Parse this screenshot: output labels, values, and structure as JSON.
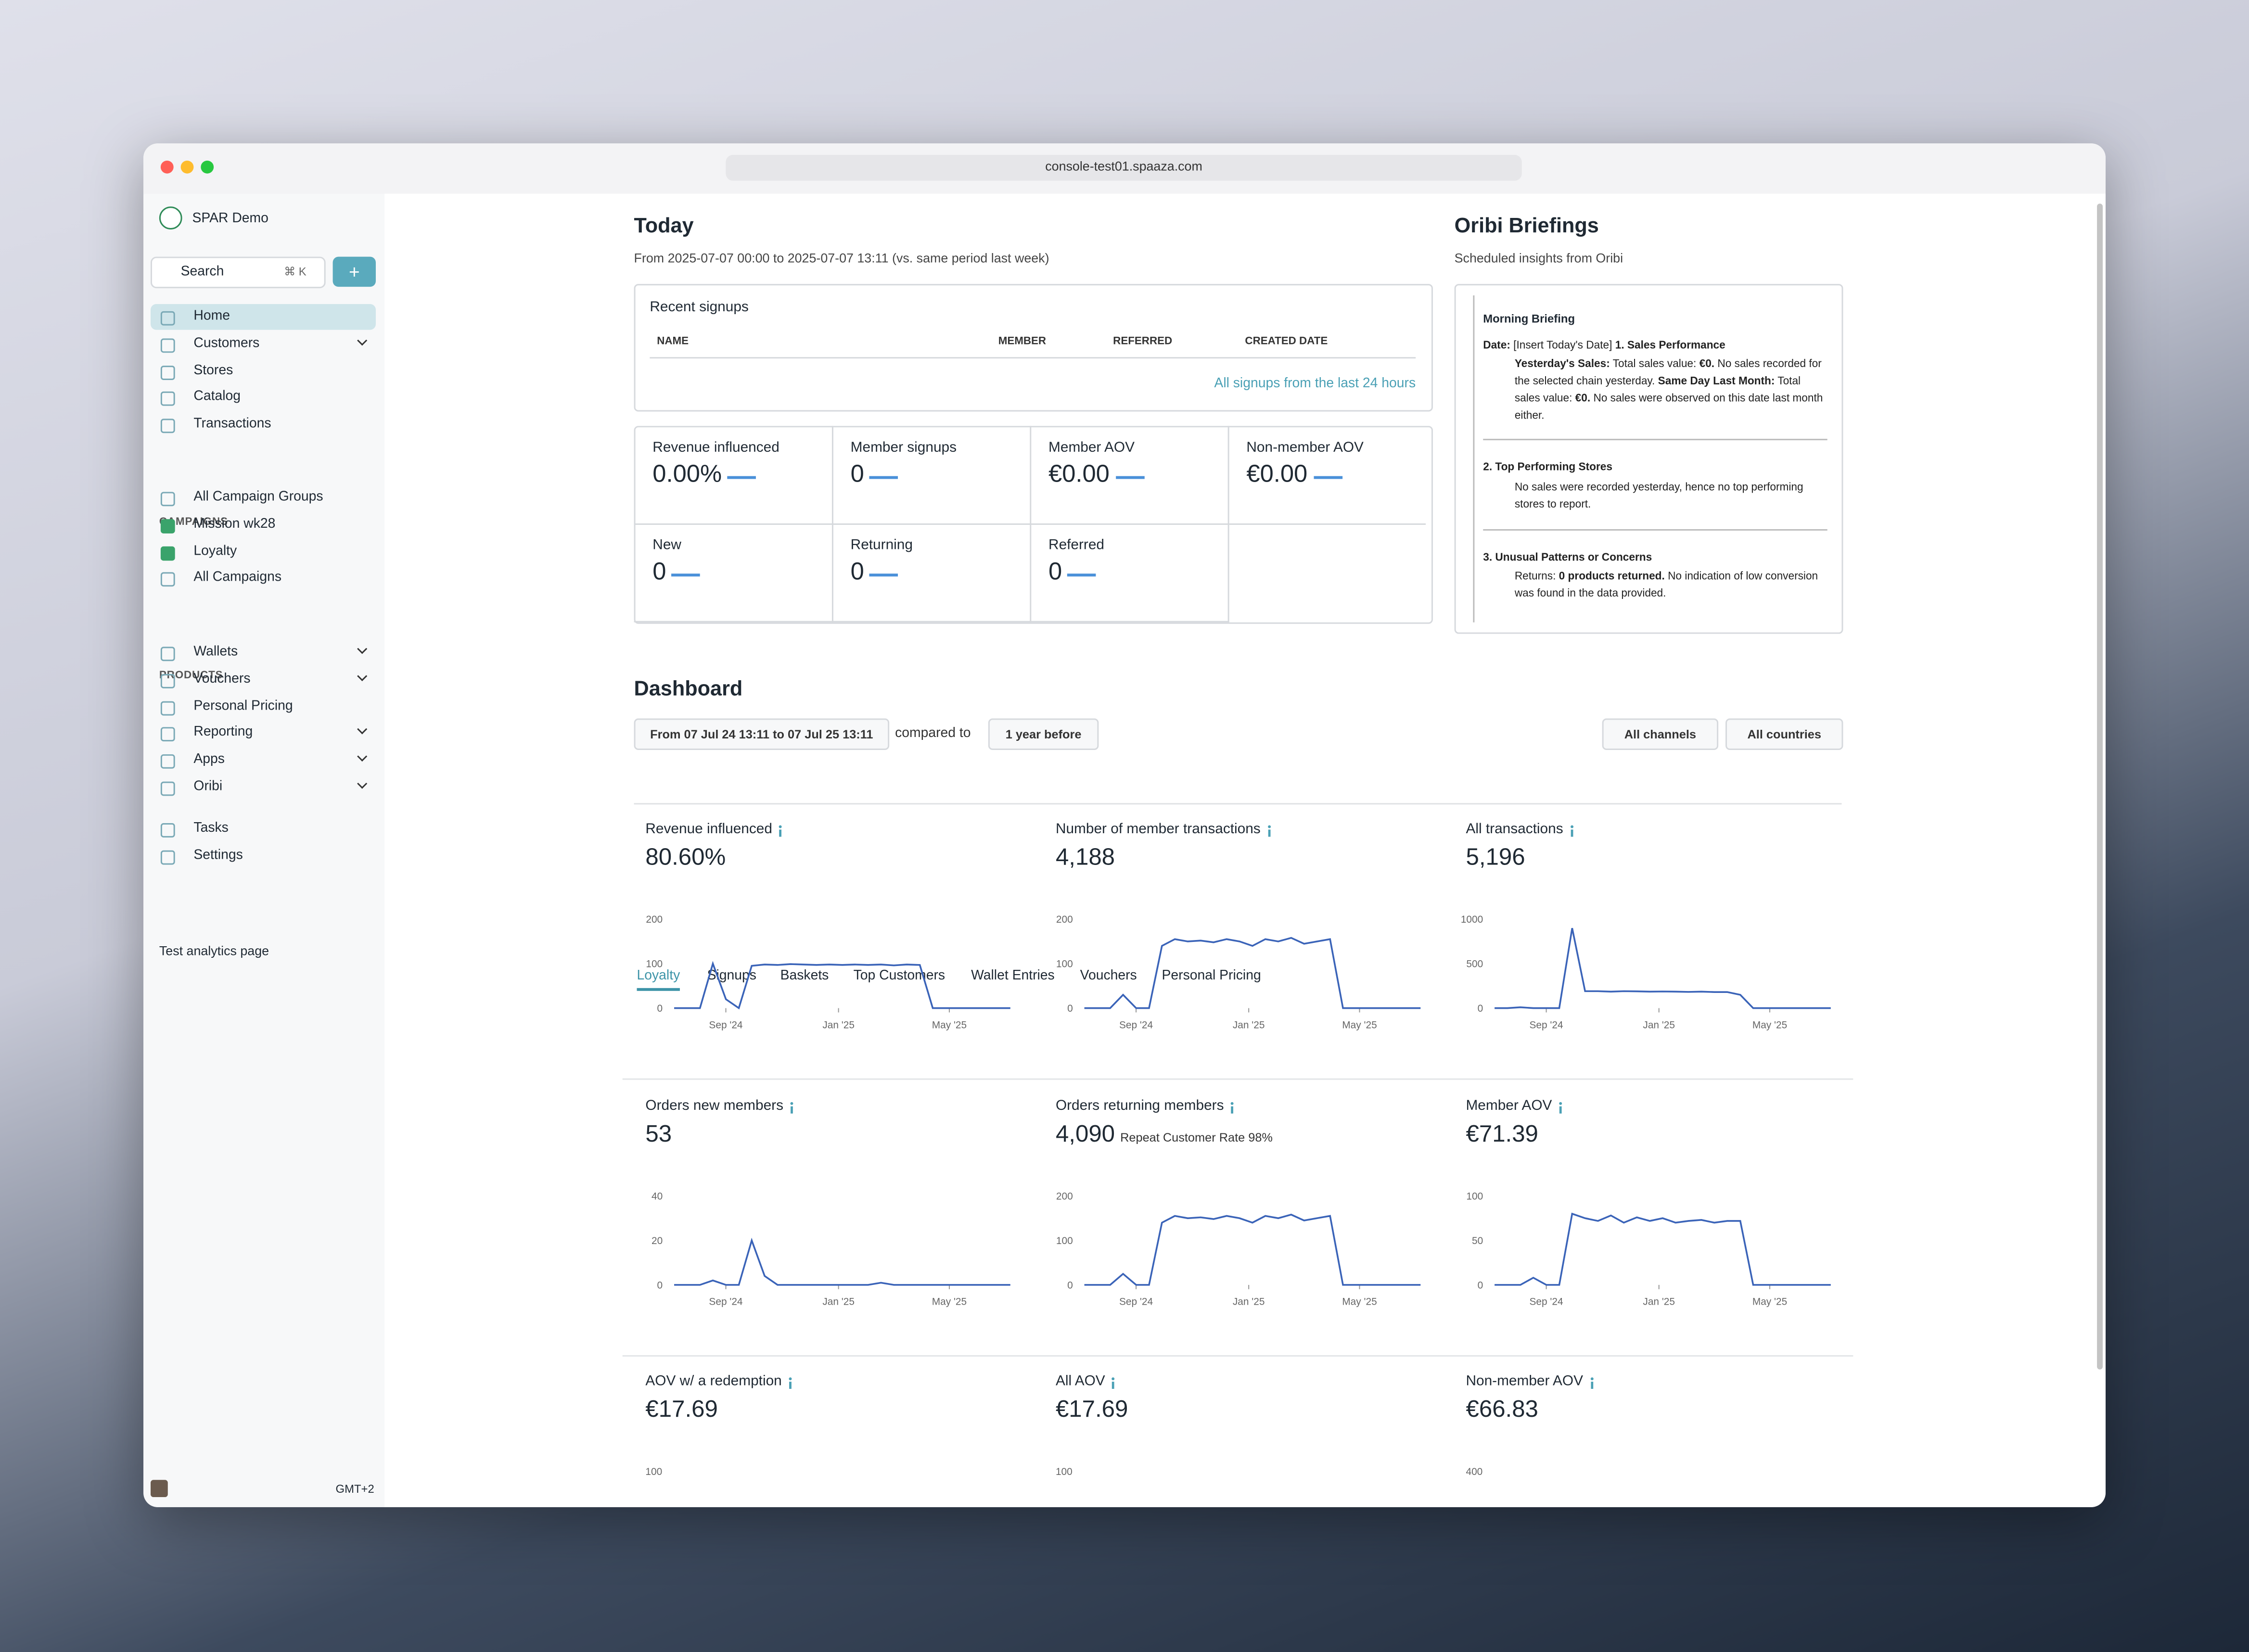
{
  "browser": {
    "url": "console-test01.spaaza.com"
  },
  "sidebar": {
    "org": "SPAR Demo",
    "search": "Search",
    "shortcut": "⌘ K",
    "add": "+",
    "nav": [
      {
        "label": "Home",
        "active": true
      },
      {
        "label": "Customers",
        "expandable": true
      },
      {
        "label": "Stores"
      },
      {
        "label": "Catalog"
      },
      {
        "label": "Transactions"
      }
    ],
    "campaigns_heading": "CAMPAIGNS",
    "campaigns": [
      {
        "label": "All Campaign Groups"
      },
      {
        "label": "Mission wk28",
        "color": "#3aa36b"
      },
      {
        "label": "Loyalty",
        "color": "#3aa36b"
      },
      {
        "label": "All Campaigns"
      }
    ],
    "products_heading": "PRODUCTS",
    "products": [
      {
        "label": "Wallets",
        "expandable": true
      },
      {
        "label": "Vouchers",
        "expandable": true
      },
      {
        "label": "Personal Pricing"
      },
      {
        "label": "Reporting",
        "expandable": true
      },
      {
        "label": "Apps",
        "expandable": true
      },
      {
        "label": "Oribi",
        "expandable": true
      }
    ],
    "utility": [
      {
        "label": "Tasks"
      },
      {
        "label": "Settings"
      }
    ],
    "extra": "Test analytics page",
    "timezone": "GMT+2"
  },
  "today": {
    "title": "Today",
    "subtitle": "From 2025-07-07 00:00 to 2025-07-07 13:11 (vs. same period last week)",
    "signups": {
      "title": "Recent signups",
      "columns": [
        "NAME",
        "MEMBER",
        "REFERRED",
        "CREATED DATE"
      ],
      "link": "All signups from the last 24 hours"
    },
    "kpis": [
      {
        "label": "Revenue influenced",
        "value": "0.00%"
      },
      {
        "label": "Member signups",
        "value": "0"
      },
      {
        "label": "Member AOV",
        "value": "€0.00"
      },
      {
        "label": "Non-member AOV",
        "value": "€0.00"
      },
      {
        "label": "New",
        "value": "0"
      },
      {
        "label": "Returning",
        "value": "0"
      },
      {
        "label": "Referred",
        "value": "0"
      }
    ]
  },
  "briefings": {
    "title": "Oribi Briefings",
    "subtitle": "Scheduled insights from Oribi",
    "heading": "Morning Briefing",
    "paragraphs": [
      [
        {
          "text": "Date:",
          "bold": true
        },
        {
          "text": " [Insert Today's Date] ",
          "bold": false
        },
        {
          "text": "1. Sales Performance",
          "bold": true
        }
      ],
      [
        {
          "text": "Yesterday's Sales:",
          "bold": true
        },
        {
          "text": " Total sales value: ",
          "bold": false
        },
        {
          "text": "€0.",
          "bold": true
        },
        {
          "text": " No sales recorded for the selected chain yesterday. ",
          "bold": false
        },
        {
          "text": "Same Day Last Month:",
          "bold": true
        },
        {
          "text": " Total sales value: ",
          "bold": false
        },
        {
          "text": "€0.",
          "bold": true
        },
        {
          "text": " No sales were observed on this date last month either.",
          "bold": false
        }
      ],
      [
        {
          "text": "2. Top Performing Stores",
          "bold": true
        }
      ],
      [
        {
          "text": "No sales were recorded yesterday, hence no top performing stores to report.",
          "bold": false
        }
      ],
      [
        {
          "text": "3. Unusual Patterns or Concerns",
          "bold": true
        }
      ],
      [
        {
          "text": "Returns: ",
          "bold": false
        },
        {
          "text": "0 products returned.",
          "bold": true
        },
        {
          "text": " No indication of low conversion was found in the data provided.",
          "bold": false
        }
      ]
    ]
  },
  "dashboard": {
    "title": "Dashboard",
    "range": "From 07 Jul 24 13:11 to 07 Jul 25 13:11",
    "compared": "compared to",
    "comparison": "1 year before",
    "channels": "All channels",
    "countries": "All countries",
    "tabs": [
      "Loyalty",
      "Signups",
      "Baskets",
      "Top Customers",
      "Wallet Entries",
      "Vouchers",
      "Personal Pricing"
    ],
    "active_tab": 0,
    "line_color": "#3a63b8",
    "x_days": [
      0,
      14,
      28,
      42,
      56,
      70,
      84,
      98,
      112,
      126,
      140,
      154,
      168,
      182,
      196,
      210,
      224,
      238,
      252,
      266,
      280,
      294,
      308,
      322,
      336,
      350,
      364
    ],
    "xlim": [
      0,
      365
    ],
    "xticks": [
      {
        "value": 56,
        "label": "Sep '24"
      },
      {
        "value": 178,
        "label": "Jan '25"
      },
      {
        "value": 298,
        "label": "May '25"
      }
    ],
    "cards": [
      {
        "title": "Revenue influenced",
        "value": "80.60%",
        "chart": {
          "type": "line",
          "ylim": [
            0,
            200
          ],
          "yticks": [
            0,
            100,
            200
          ],
          "values": [
            0,
            0,
            0,
            100,
            20,
            0,
            95,
            98,
            97,
            99,
            98,
            97,
            98,
            97,
            98,
            97,
            98,
            96,
            98,
            97,
            0,
            0,
            0,
            0,
            0,
            0,
            0
          ]
        }
      },
      {
        "title": "Number of member transactions",
        "value": "4,188",
        "chart": {
          "type": "line",
          "ylim": [
            0,
            200
          ],
          "yticks": [
            0,
            100,
            200
          ],
          "values": [
            0,
            0,
            0,
            30,
            0,
            0,
            140,
            155,
            150,
            152,
            148,
            155,
            150,
            140,
            155,
            150,
            158,
            145,
            150,
            155,
            0,
            0,
            0,
            0,
            0,
            0,
            0
          ]
        }
      },
      {
        "title": "All transactions",
        "value": "5,196",
        "chart": {
          "type": "line",
          "ylim": [
            0,
            1000
          ],
          "yticks": [
            0,
            500,
            1000
          ],
          "values": [
            0,
            0,
            10,
            0,
            0,
            0,
            900,
            190,
            190,
            185,
            190,
            188,
            185,
            187,
            185,
            183,
            185,
            180,
            180,
            150,
            0,
            0,
            0,
            0,
            0,
            0,
            0
          ]
        }
      },
      {
        "title": "Orders new members",
        "value": "53",
        "chart": {
          "type": "line",
          "ylim": [
            0,
            40
          ],
          "yticks": [
            0,
            20,
            40
          ],
          "values": [
            0,
            0,
            0,
            2,
            0,
            0,
            20,
            4,
            0,
            0,
            0,
            0,
            0,
            0,
            0,
            0,
            1,
            0,
            0,
            0,
            0,
            0,
            0,
            0,
            0,
            0,
            0
          ]
        }
      },
      {
        "title": "Orders returning members",
        "value": "4,090",
        "note": "Repeat Customer Rate 98%",
        "chart": {
          "type": "line",
          "ylim": [
            0,
            200
          ],
          "yticks": [
            0,
            100,
            200
          ],
          "values": [
            0,
            0,
            0,
            25,
            0,
            0,
            140,
            155,
            150,
            152,
            148,
            155,
            150,
            140,
            155,
            150,
            158,
            145,
            150,
            155,
            0,
            0,
            0,
            0,
            0,
            0,
            0
          ]
        }
      },
      {
        "title": "Member AOV",
        "value": "€71.39",
        "chart": {
          "type": "line",
          "ylim": [
            0,
            100
          ],
          "yticks": [
            0,
            50,
            100
          ],
          "values": [
            0,
            0,
            0,
            8,
            0,
            0,
            80,
            75,
            72,
            78,
            70,
            76,
            72,
            75,
            70,
            72,
            73,
            70,
            72,
            72,
            0,
            0,
            0,
            0,
            0,
            0,
            0
          ]
        }
      },
      {
        "title": "AOV w/ a redemption",
        "value": "€17.69",
        "chart": {
          "type": "line",
          "yticks": [
            100
          ]
        }
      },
      {
        "title": "All AOV",
        "value": "€17.69",
        "chart": {
          "type": "line",
          "yticks": [
            100
          ]
        }
      },
      {
        "title": "Non-member AOV",
        "value": "€66.83",
        "chart": {
          "type": "line",
          "yticks": [
            400
          ]
        }
      }
    ]
  }
}
